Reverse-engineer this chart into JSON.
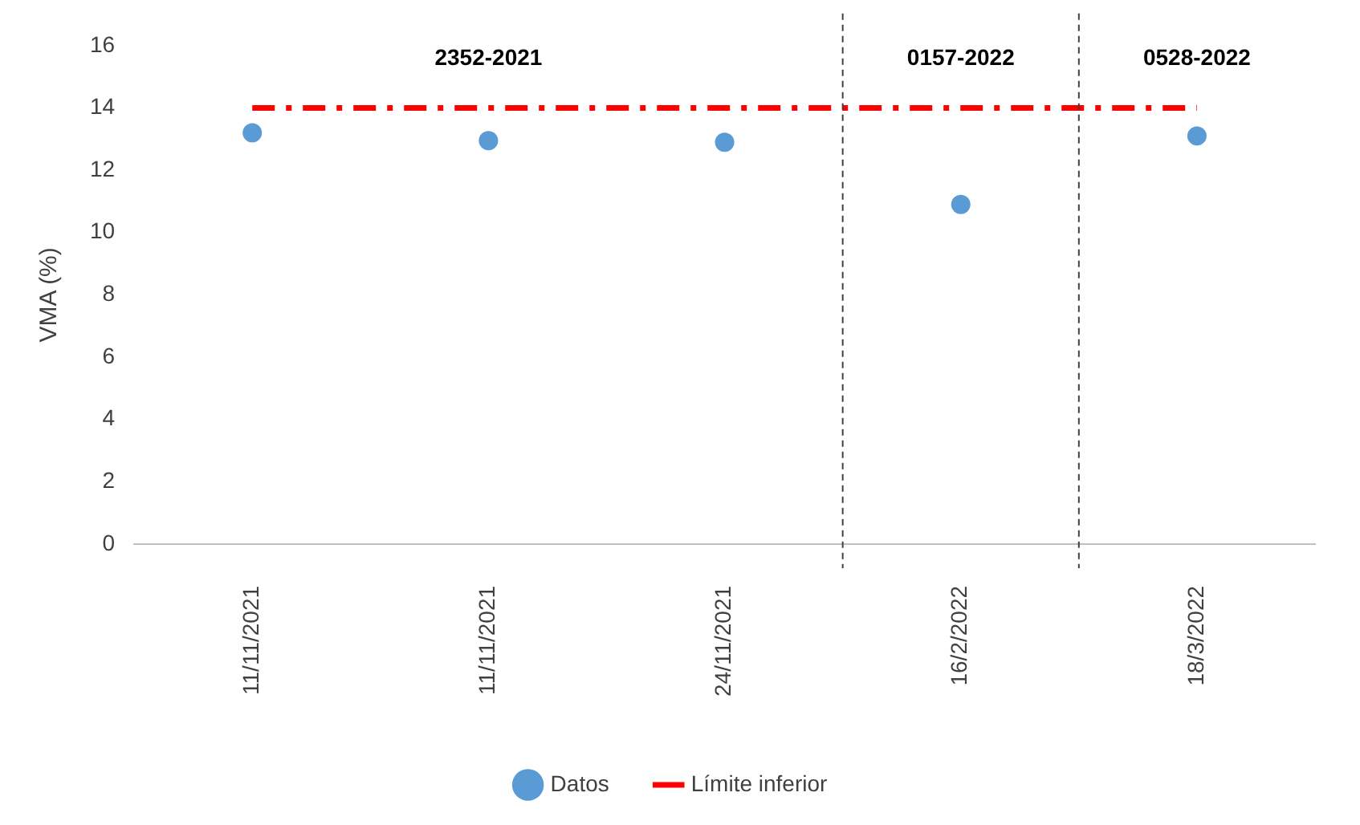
{
  "chart_data": {
    "type": "scatter",
    "ylabel": "VMA (%)",
    "categories": [
      "11/11/2021",
      "11/11/2021",
      "24/11/2021",
      "16/2/2022",
      "18/3/2022"
    ],
    "series": [
      {
        "name": "Datos",
        "color": "#5b9bd5",
        "marker": "circle",
        "values": [
          13.2,
          12.95,
          12.9,
          10.9,
          13.1
        ]
      },
      {
        "name": "Límite inferior",
        "type": "line",
        "color": "#ff0000",
        "marker": "none",
        "line_style": "dashed",
        "values": [
          14,
          14,
          14,
          14,
          14
        ]
      }
    ],
    "ylim": [
      0,
      16
    ],
    "yticks": [
      0,
      2,
      4,
      6,
      8,
      10,
      12,
      14,
      16
    ],
    "grid": false,
    "legend": "bottom",
    "annotations": [
      "2352-2021",
      "0157-2022",
      "0528-2022"
    ]
  }
}
